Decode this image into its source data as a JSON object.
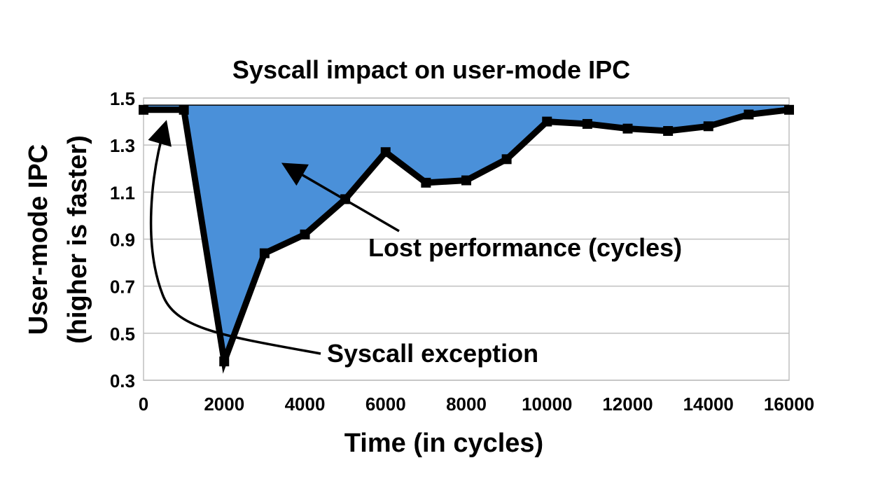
{
  "chart_data": {
    "type": "line",
    "title": "Syscall impact on user-mode IPC",
    "xlabel": "Time (in cycles)",
    "ylabel_lines": [
      "User-mode IPC",
      "(higher is faster)"
    ],
    "xlim": [
      0,
      16000
    ],
    "ylim": [
      0.3,
      1.5
    ],
    "x_ticks": [
      0,
      2000,
      4000,
      6000,
      8000,
      10000,
      12000,
      14000,
      16000
    ],
    "y_ticks": [
      0.3,
      0.5,
      0.7,
      0.9,
      1.1,
      1.3,
      1.5
    ],
    "y_tick_labels": [
      "0.3",
      "0.5",
      "0.7",
      "0.9",
      "1.1",
      "1.3",
      "1.5"
    ],
    "grid": true,
    "baseline": 1.47,
    "x": [
      0,
      1000,
      2000,
      3000,
      4000,
      5000,
      6000,
      7000,
      8000,
      9000,
      10000,
      11000,
      12000,
      13000,
      14000,
      15000,
      16000
    ],
    "y": [
      1.45,
      1.45,
      0.38,
      0.84,
      0.92,
      1.07,
      1.27,
      1.14,
      1.15,
      1.24,
      1.4,
      1.39,
      1.37,
      1.36,
      1.38,
      1.43,
      1.45
    ],
    "colors": {
      "line": "#000000",
      "fill": "#4a90d9",
      "grid": "#bfbfbf"
    },
    "annotations": {
      "lost": {
        "text": "Lost performance (cycles)",
        "x": 2000,
        "y": 1.15
      },
      "syscall": {
        "text": "Syscall exception",
        "x": 2500,
        "y": 0.4
      }
    }
  }
}
